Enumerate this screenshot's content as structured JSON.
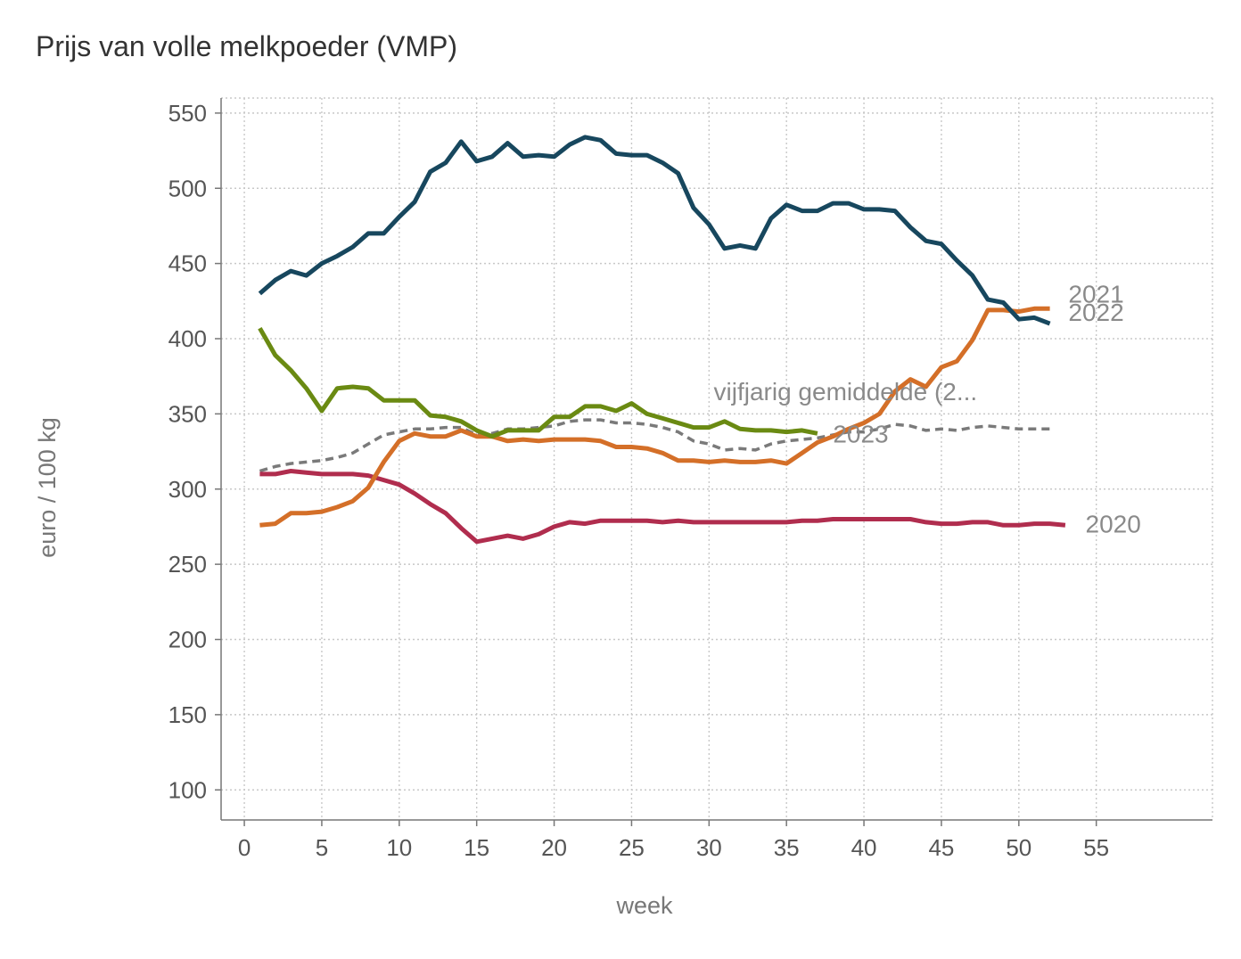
{
  "chart_data": {
    "type": "line",
    "title": "Prijs van volle melkpoeder (VMP)",
    "xlabel": "week",
    "ylabel": "euro / 100 kg",
    "xlim": [
      -1.5,
      62.5
    ],
    "ylim": [
      80,
      560
    ],
    "x_ticks": [
      0,
      5,
      10,
      15,
      20,
      25,
      30,
      35,
      40,
      45,
      50,
      55
    ],
    "y_ticks": [
      100,
      150,
      200,
      250,
      300,
      350,
      400,
      450,
      500,
      550
    ],
    "grid": true,
    "series": [
      {
        "name": "2020",
        "color": "#b02d4e",
        "dashed": false,
        "x": [
          1,
          2,
          3,
          4,
          5,
          6,
          7,
          8,
          9,
          10,
          11,
          12,
          13,
          14,
          15,
          16,
          17,
          18,
          19,
          20,
          21,
          22,
          23,
          24,
          25,
          26,
          27,
          28,
          29,
          30,
          31,
          32,
          33,
          34,
          35,
          36,
          37,
          38,
          39,
          40,
          41,
          42,
          43,
          44,
          45,
          46,
          47,
          48,
          49,
          50,
          51,
          52,
          53
        ],
        "values": [
          310,
          310,
          312,
          311,
          310,
          310,
          310,
          309,
          306,
          303,
          297,
          290,
          284,
          274,
          265,
          267,
          269,
          267,
          270,
          275,
          278,
          277,
          279,
          279,
          279,
          279,
          278,
          279,
          278,
          278,
          278,
          278,
          278,
          278,
          278,
          279,
          279,
          280,
          280,
          280,
          280,
          280,
          280,
          278,
          277,
          277,
          278,
          278,
          276,
          276,
          277,
          277,
          276
        ]
      },
      {
        "name": "2021",
        "color": "#d46f28",
        "dashed": false,
        "x": [
          1,
          2,
          3,
          4,
          5,
          6,
          7,
          8,
          9,
          10,
          11,
          12,
          13,
          14,
          15,
          16,
          17,
          18,
          19,
          20,
          21,
          22,
          23,
          24,
          25,
          26,
          27,
          28,
          29,
          30,
          31,
          32,
          33,
          34,
          35,
          36,
          37,
          38,
          39,
          40,
          41,
          42,
          43,
          44,
          45,
          46,
          47,
          48,
          49,
          50,
          51,
          52
        ],
        "values": [
          276,
          277,
          284,
          284,
          285,
          288,
          292,
          301,
          318,
          332,
          337,
          335,
          335,
          339,
          335,
          335,
          332,
          333,
          332,
          333,
          333,
          333,
          332,
          328,
          328,
          327,
          324,
          319,
          319,
          318,
          319,
          318,
          318,
          319,
          317,
          324,
          331,
          335,
          340,
          344,
          350,
          365,
          373,
          368,
          381,
          385,
          399,
          419,
          419,
          418,
          420,
          420
        ]
      },
      {
        "name": "2022",
        "color": "#17475e",
        "dashed": false,
        "x": [
          1,
          2,
          3,
          4,
          5,
          6,
          7,
          8,
          9,
          10,
          11,
          12,
          13,
          14,
          15,
          16,
          17,
          18,
          19,
          20,
          21,
          22,
          23,
          24,
          25,
          26,
          27,
          28,
          29,
          30,
          31,
          32,
          33,
          34,
          35,
          36,
          37,
          38,
          39,
          40,
          41,
          42,
          43,
          44,
          45,
          46,
          47,
          48,
          49,
          50,
          51,
          52
        ],
        "values": [
          430,
          439,
          445,
          442,
          450,
          455,
          461,
          470,
          470,
          481,
          491,
          511,
          517,
          531,
          518,
          521,
          530,
          521,
          522,
          521,
          529,
          534,
          532,
          523,
          522,
          522,
          517,
          510,
          487,
          476,
          460,
          462,
          460,
          480,
          489,
          485,
          485,
          490,
          490,
          486,
          486,
          485,
          474,
          465,
          463,
          452,
          442,
          426,
          424,
          413,
          414,
          410
        ]
      },
      {
        "name": "2023",
        "color": "#6a8a12",
        "dashed": false,
        "x": [
          1,
          2,
          3,
          4,
          5,
          6,
          7,
          8,
          9,
          10,
          11,
          12,
          13,
          14,
          15,
          16,
          17,
          18,
          19,
          20,
          21,
          22,
          23,
          24,
          25,
          26,
          27,
          28,
          29,
          30,
          31,
          32,
          33,
          34,
          35,
          36,
          37
        ],
        "values": [
          407,
          389,
          379,
          367,
          352,
          367,
          368,
          367,
          359,
          359,
          359,
          349,
          348,
          345,
          339,
          335,
          339,
          339,
          339,
          348,
          348,
          355,
          355,
          352,
          357,
          350,
          347,
          344,
          341,
          341,
          345,
          340,
          339,
          339,
          338,
          339,
          337
        ]
      },
      {
        "name": "vijfjarig gemiddelde (2...",
        "color": "#7a7a7a",
        "dashed": true,
        "x": [
          1,
          2,
          3,
          4,
          5,
          6,
          7,
          8,
          9,
          10,
          11,
          12,
          13,
          14,
          15,
          16,
          17,
          18,
          19,
          20,
          21,
          22,
          23,
          24,
          25,
          26,
          27,
          28,
          29,
          30,
          31,
          32,
          33,
          34,
          35,
          36,
          37,
          38,
          39,
          40,
          41,
          42,
          43,
          44,
          45,
          46,
          47,
          48,
          49,
          50,
          51,
          52
        ],
        "values": [
          312,
          315,
          317,
          318,
          319,
          321,
          324,
          330,
          336,
          338,
          340,
          340,
          341,
          341,
          336,
          337,
          340,
          340,
          341,
          342,
          345,
          346,
          346,
          344,
          344,
          343,
          341,
          338,
          332,
          330,
          326,
          327,
          326,
          330,
          332,
          333,
          334,
          336,
          338,
          338,
          340,
          343,
          342,
          339,
          340,
          339,
          341,
          342,
          341,
          340,
          340,
          340
        ]
      }
    ],
    "labels": [
      {
        "text": "2021",
        "x": 53.2,
        "y": 424
      },
      {
        "text": "2022",
        "x": 53.2,
        "y": 412
      },
      {
        "text": "vijfjarig gemiddelde (2...",
        "x": 30.3,
        "y": 359
      },
      {
        "text": "2023",
        "x": 38.0,
        "y": 331
      },
      {
        "text": "2020",
        "x": 54.3,
        "y": 271
      }
    ]
  }
}
